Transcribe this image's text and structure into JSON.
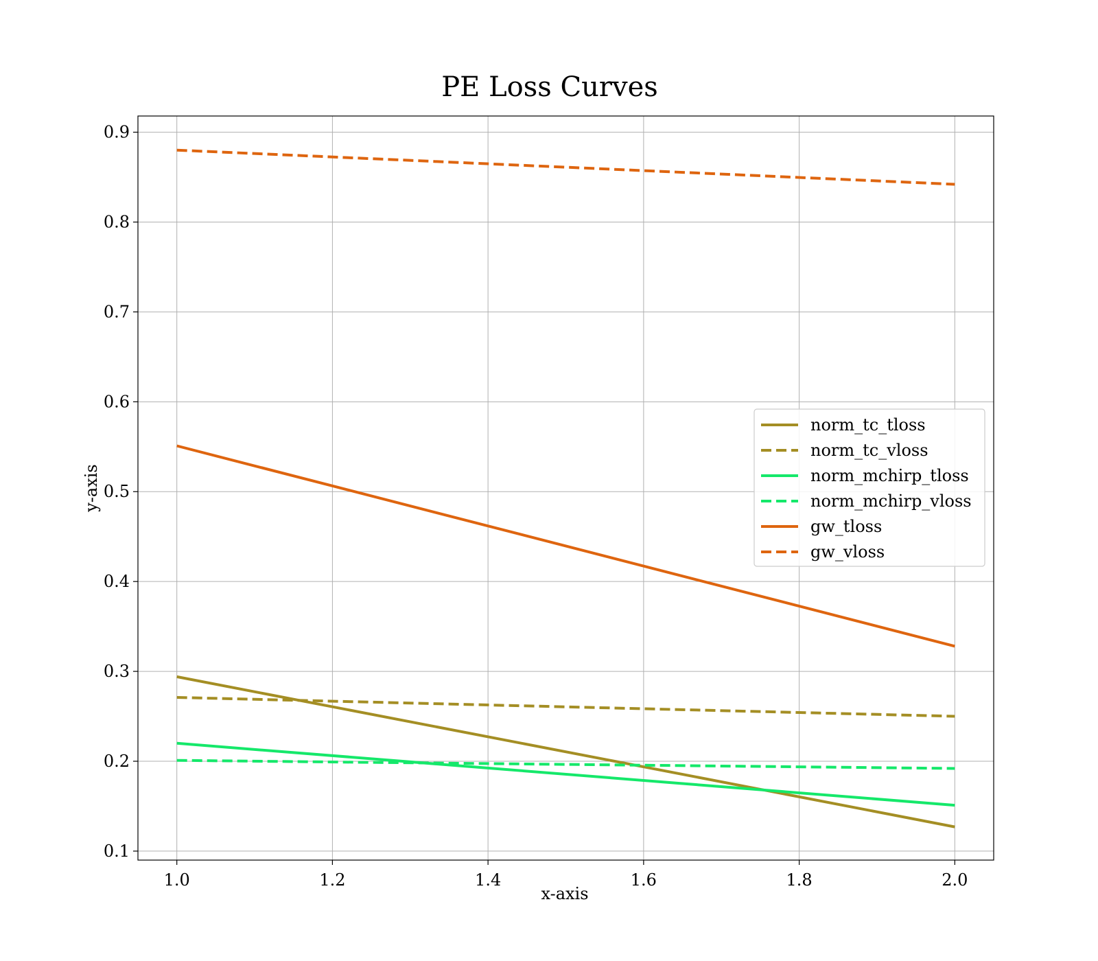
{
  "chart_data": {
    "type": "line",
    "title": "PE Loss Curves",
    "xlabel": "x-axis",
    "ylabel": "y-axis",
    "xlim": [
      0.95,
      2.05
    ],
    "ylim": [
      0.09,
      0.918
    ],
    "xticks": [
      "1.0",
      "1.2",
      "1.4",
      "1.6",
      "1.8",
      "2.0"
    ],
    "yticks": [
      "0.1",
      "0.2",
      "0.3",
      "0.4",
      "0.5",
      "0.6",
      "0.7",
      "0.8",
      "0.9"
    ],
    "grid": true,
    "legend_position": "center-right",
    "x": [
      1.0,
      2.0
    ],
    "series": [
      {
        "name": "norm_tc_tloss",
        "values": [
          0.294,
          0.127
        ],
        "color": "#a48e24",
        "style": "solid"
      },
      {
        "name": "norm_tc_vloss",
        "values": [
          0.271,
          0.25
        ],
        "color": "#a48e24",
        "style": "dashed"
      },
      {
        "name": "norm_mchirp_tloss",
        "values": [
          0.22,
          0.151
        ],
        "color": "#15e86a",
        "style": "solid"
      },
      {
        "name": "norm_mchirp_vloss",
        "values": [
          0.201,
          0.192
        ],
        "color": "#15e86a",
        "style": "dashed"
      },
      {
        "name": "gw_tloss",
        "values": [
          0.551,
          0.328
        ],
        "color": "#de650f",
        "style": "solid"
      },
      {
        "name": "gw_vloss",
        "values": [
          0.88,
          0.842
        ],
        "color": "#de650f",
        "style": "dashed"
      }
    ]
  }
}
